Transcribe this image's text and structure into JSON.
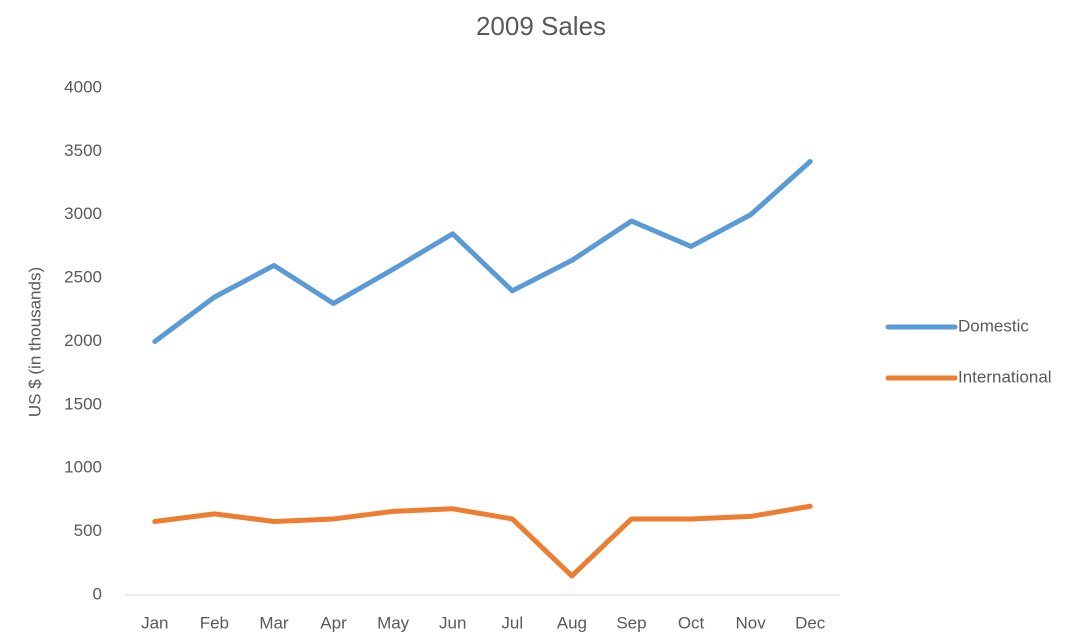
{
  "chart_data": {
    "type": "line",
    "title": "2009 Sales",
    "y_label": "US $ (in thousands)",
    "categories": [
      "Jan",
      "Feb",
      "Mar",
      "Apr",
      "May",
      "Jun",
      "Jul",
      "Aug",
      "Sep",
      "Oct",
      "Nov",
      "Dec"
    ],
    "series": [
      {
        "name": "Domestic",
        "color": "#5b9bd5",
        "values": [
          2000,
          2350,
          2600,
          2300,
          2570,
          2850,
          2400,
          2640,
          2950,
          2750,
          3000,
          3420
        ]
      },
      {
        "name": "International",
        "color": "#ed7d31",
        "values": [
          580,
          640,
          580,
          600,
          660,
          680,
          600,
          150,
          600,
          600,
          620,
          700
        ]
      }
    ],
    "ylim": [
      0,
      4000
    ],
    "yticks": [
      0,
      500,
      1000,
      1500,
      2000,
      2500,
      3000,
      3500,
      4000
    ],
    "grid": false,
    "legend": "right"
  }
}
